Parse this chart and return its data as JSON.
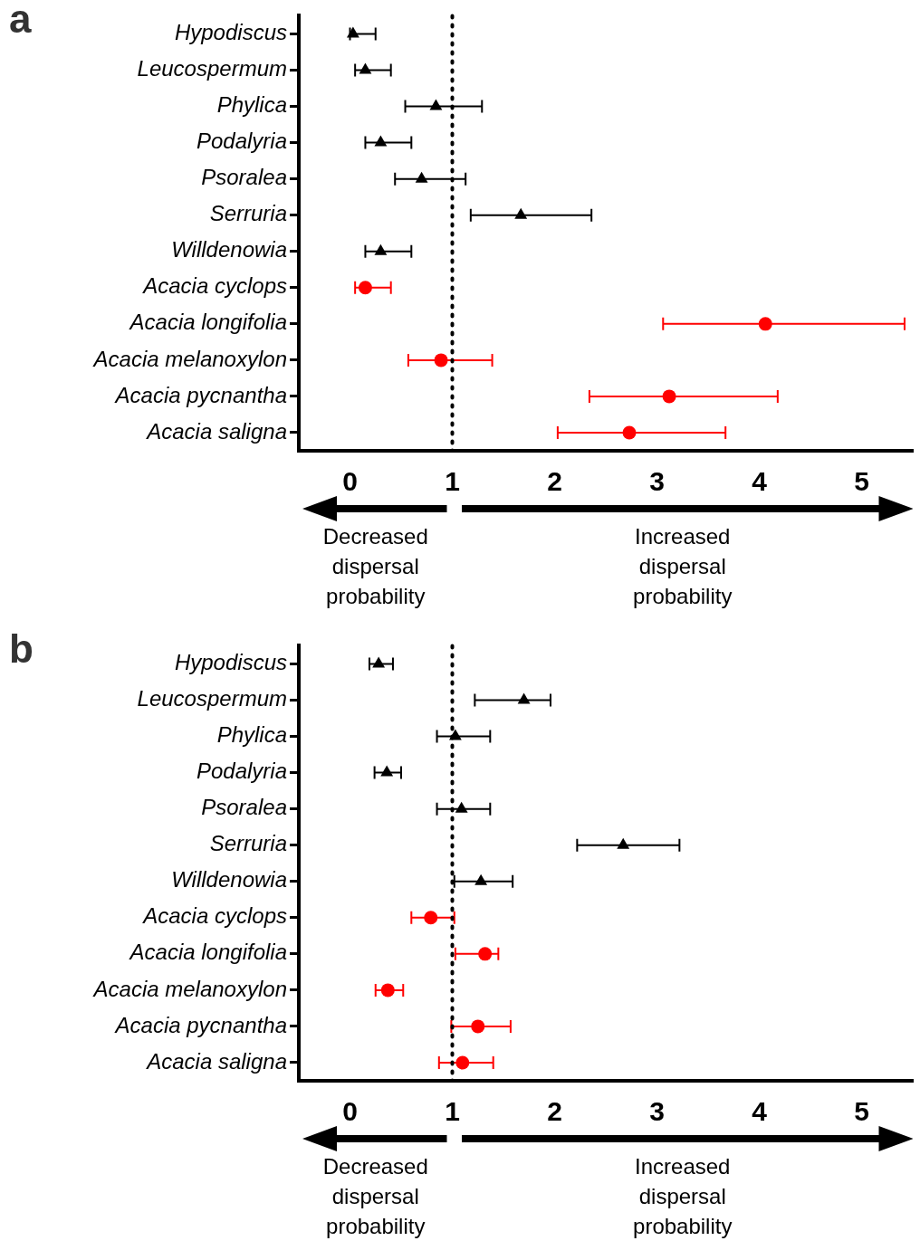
{
  "chart_data": [
    {
      "type": "scatter",
      "title": "a",
      "orientation": "horizontal",
      "categories": [
        "Hypodiscus",
        "Leucospermum",
        "Phylica",
        "Podalyria",
        "Psoralea",
        "Serruria",
        "Willdenowia",
        "Acacia cyclops",
        "Acacia longifolia",
        "Acacia melanoxylon",
        "Acacia pycnantha",
        "Acacia saligna"
      ],
      "series": [
        {
          "color": "#000000",
          "marker": "triangle",
          "values": [
            0.03,
            0.15,
            0.84,
            0.3,
            0.7,
            1.67,
            0.3,
            null,
            null,
            null,
            null,
            null
          ],
          "errors": [
            [
              0.0,
              0.25
            ],
            [
              0.05,
              0.4
            ],
            [
              0.54,
              1.29
            ],
            [
              0.15,
              0.6
            ],
            [
              0.44,
              1.13
            ],
            [
              1.18,
              2.36
            ],
            [
              0.15,
              0.6
            ],
            null,
            null,
            null,
            null,
            null
          ]
        },
        {
          "color": "#ff0000",
          "marker": "circle",
          "values": [
            null,
            null,
            null,
            null,
            null,
            null,
            null,
            0.15,
            4.06,
            0.89,
            3.12,
            2.73
          ],
          "errors": [
            null,
            null,
            null,
            null,
            null,
            null,
            null,
            [
              0.05,
              0.4
            ],
            [
              3.06,
              5.42
            ],
            [
              0.57,
              1.39
            ],
            [
              2.34,
              4.18
            ],
            [
              2.03,
              3.67
            ]
          ]
        }
      ],
      "xlim": [
        -0.5,
        5.5
      ],
      "xticks": [
        0,
        1,
        2,
        3,
        4,
        5
      ],
      "grid": false,
      "legend": false,
      "ref_lines": [
        {
          "axis": "x",
          "value": 1,
          "line_style": "dotted",
          "color": "#000000"
        }
      ],
      "annotations": [
        "Decreased dispersal probability",
        "Increased dispersal probability"
      ]
    },
    {
      "type": "scatter",
      "title": "b",
      "orientation": "horizontal",
      "categories": [
        "Hypodiscus",
        "Leucospermum",
        "Phylica",
        "Podalyria",
        "Psoralea",
        "Serruria",
        "Willdenowia",
        "Acacia cyclops",
        "Acacia longifolia",
        "Acacia melanoxylon",
        "Acacia pycnantha",
        "Acacia saligna"
      ],
      "series": [
        {
          "color": "#000000",
          "marker": "triangle",
          "values": [
            0.28,
            1.7,
            1.03,
            0.36,
            1.09,
            2.67,
            1.28,
            null,
            null,
            null,
            null,
            null
          ],
          "errors": [
            [
              0.19,
              0.42
            ],
            [
              1.22,
              1.96
            ],
            [
              0.85,
              1.37
            ],
            [
              0.24,
              0.5
            ],
            [
              0.85,
              1.37
            ],
            [
              2.22,
              3.22
            ],
            [
              1.02,
              1.59
            ],
            null,
            null,
            null,
            null,
            null
          ]
        },
        {
          "color": "#ff0000",
          "marker": "circle",
          "values": [
            null,
            null,
            null,
            null,
            null,
            null,
            null,
            0.79,
            1.32,
            0.37,
            1.25,
            1.1
          ],
          "errors": [
            null,
            null,
            null,
            null,
            null,
            null,
            null,
            [
              0.6,
              1.02
            ],
            [
              1.03,
              1.45
            ],
            [
              0.25,
              0.52
            ],
            [
              0.99,
              1.57
            ],
            [
              0.87,
              1.4
            ]
          ]
        }
      ],
      "xlim": [
        -0.5,
        5.5
      ],
      "xticks": [
        0,
        1,
        2,
        3,
        4,
        5
      ],
      "grid": false,
      "legend": false,
      "ref_lines": [
        {
          "axis": "x",
          "value": 1,
          "line_style": "dotted",
          "color": "#000000"
        }
      ],
      "annotations": [
        "Decreased dispersal probability",
        "Increased dispersal probability"
      ]
    }
  ]
}
